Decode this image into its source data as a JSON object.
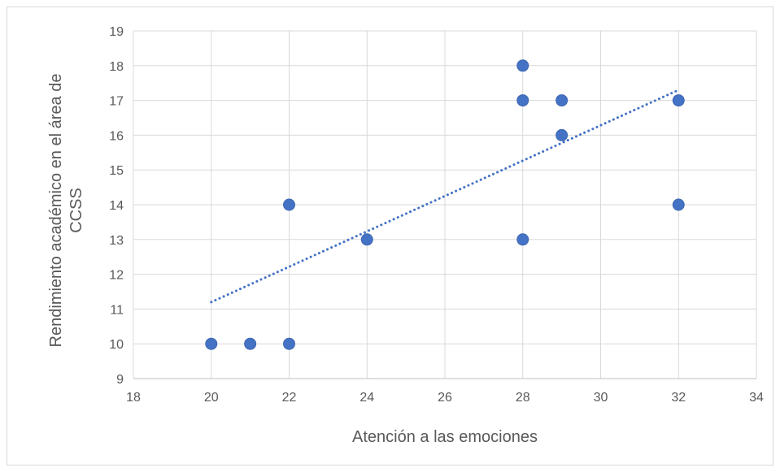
{
  "chart_data": {
    "type": "scatter",
    "title": "",
    "xlabel": "Atención a las emociones",
    "ylabel_lines": [
      "Rendimiento académico en el área de",
      "CCSS"
    ],
    "xlim": [
      18,
      34
    ],
    "ylim": [
      9,
      19
    ],
    "x_ticks": [
      18,
      20,
      22,
      24,
      26,
      28,
      30,
      32,
      34
    ],
    "y_ticks": [
      9,
      10,
      11,
      12,
      13,
      14,
      15,
      16,
      17,
      18,
      19
    ],
    "grid": true,
    "legend": "none",
    "series": [
      {
        "color": "#4472c4",
        "points": [
          {
            "x": 20,
            "y": 10
          },
          {
            "x": 21,
            "y": 10
          },
          {
            "x": 22,
            "y": 10
          },
          {
            "x": 22,
            "y": 14
          },
          {
            "x": 24,
            "y": 13
          },
          {
            "x": 28,
            "y": 13
          },
          {
            "x": 28,
            "y": 17
          },
          {
            "x": 28,
            "y": 18
          },
          {
            "x": 29,
            "y": 16
          },
          {
            "x": 29,
            "y": 17
          },
          {
            "x": 32,
            "y": 14
          },
          {
            "x": 32,
            "y": 17
          }
        ]
      }
    ],
    "trendline": {
      "type": "linear",
      "style": "dotted",
      "color": "#4472c4",
      "from": {
        "x": 20,
        "y": 11.2
      },
      "to": {
        "x": 32,
        "y": 17.3
      }
    }
  }
}
